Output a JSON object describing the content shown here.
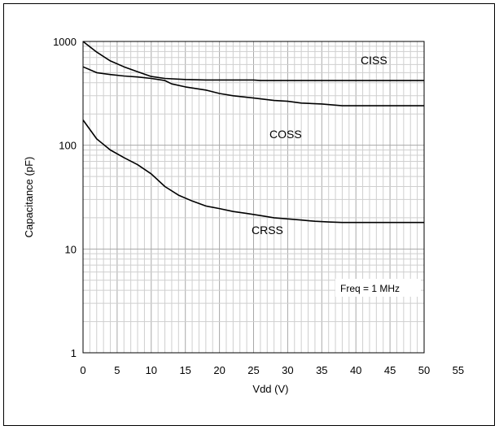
{
  "chart_data": {
    "type": "line",
    "title": "",
    "xlabel": "Vdd (V)",
    "ylabel": "Capacitance (pF)",
    "xlim": [
      0,
      55
    ],
    "ylim": [
      1,
      1000
    ],
    "yscale": "log",
    "grid": true,
    "x_ticks": [
      0,
      5,
      10,
      15,
      20,
      25,
      30,
      35,
      40,
      45,
      50,
      55
    ],
    "y_ticks": [
      1,
      10,
      100,
      1000
    ],
    "series": [
      {
        "name": "CISS",
        "x": [
          0,
          2,
          4,
          6,
          8,
          10,
          12,
          15,
          18,
          20,
          25,
          26,
          30,
          35,
          40,
          45,
          50
        ],
        "y": [
          1000,
          790,
          650,
          570,
          510,
          460,
          440,
          430,
          425,
          425,
          425,
          420,
          420,
          420,
          420,
          420,
          420
        ]
      },
      {
        "name": "COSS",
        "x": [
          0,
          2,
          4,
          6,
          8,
          10,
          12,
          13,
          15,
          18,
          20,
          22,
          25,
          28,
          30,
          32,
          35,
          38,
          40,
          45,
          50
        ],
        "y": [
          570,
          500,
          480,
          465,
          455,
          440,
          420,
          390,
          365,
          340,
          315,
          300,
          285,
          270,
          265,
          255,
          250,
          240,
          240,
          240,
          240
        ]
      },
      {
        "name": "CRSS",
        "x": [
          0,
          2,
          4,
          6,
          8,
          10,
          12,
          14,
          16,
          18,
          20,
          22,
          24,
          26,
          28,
          30,
          32,
          34,
          36,
          38,
          40,
          45,
          50
        ],
        "y": [
          175,
          115,
          90,
          76,
          65,
          53,
          40,
          33,
          29,
          26,
          24.5,
          23,
          22,
          21,
          20,
          19.5,
          19,
          18.5,
          18.2,
          18,
          18,
          18,
          18
        ]
      }
    ],
    "annotations": {
      "ciss": "CISS",
      "coss": "COSS",
      "crss": "CRSS",
      "freq": "Freq = 1 MHz"
    }
  }
}
